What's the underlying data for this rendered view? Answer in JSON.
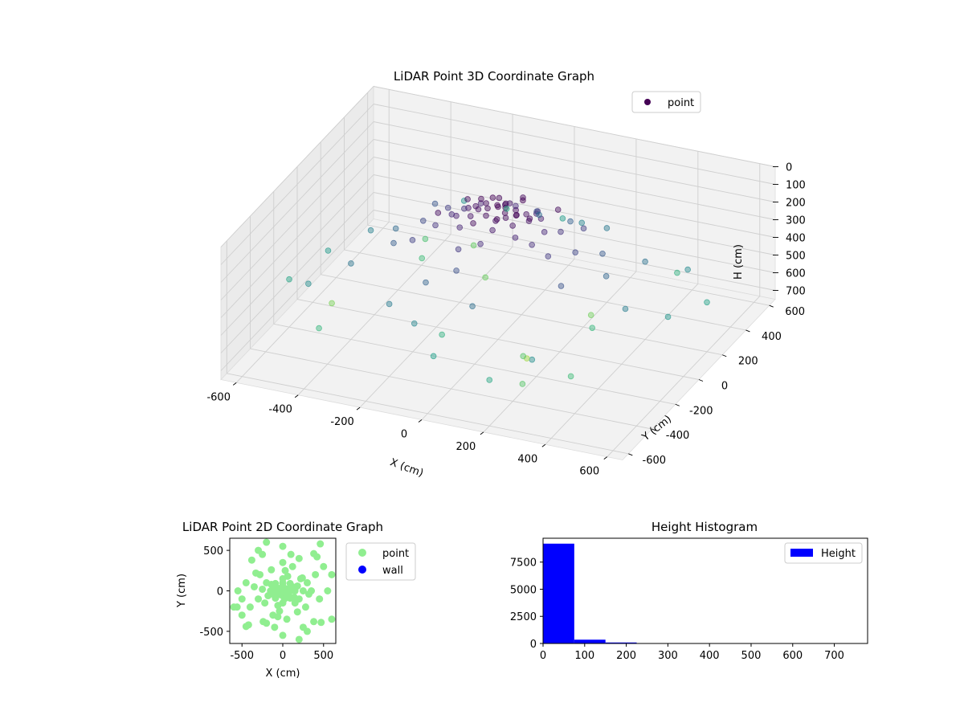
{
  "chart_data": [
    {
      "type": "scatter",
      "title": "LiDAR Point 3D Coordinate Graph",
      "xlabel": "X (cm)",
      "ylabel": "Y (cm)",
      "zlabel": "H (cm)",
      "xlim": [
        -650,
        650
      ],
      "ylim": [
        -650,
        650
      ],
      "zlim": [
        0,
        750
      ],
      "z_inverted": true,
      "x_ticks": [
        -600,
        -400,
        -200,
        0,
        200,
        400,
        600
      ],
      "y_ticks": [
        -600,
        -400,
        -200,
        0,
        200,
        400,
        600
      ],
      "z_ticks": [
        0,
        100,
        200,
        300,
        400,
        500,
        600,
        700
      ],
      "legend": [
        {
          "label": "point",
          "color": "#440154"
        }
      ],
      "legend_position": "upper-right",
      "colormap": "viridis (by height)",
      "grid": true,
      "series": [
        {
          "name": "point",
          "points": [
            [
              0,
              0,
              0
            ],
            [
              20,
              10,
              5
            ],
            [
              -10,
              20,
              8
            ],
            [
              30,
              -20,
              10
            ],
            [
              -30,
              -10,
              12
            ],
            [
              10,
              40,
              6
            ],
            [
              50,
              20,
              15
            ],
            [
              -50,
              30,
              18
            ],
            [
              40,
              -40,
              20
            ],
            [
              -20,
              -50,
              22
            ],
            [
              60,
              0,
              25
            ],
            [
              -60,
              -10,
              28
            ],
            [
              0,
              60,
              30
            ],
            [
              15,
              -60,
              32
            ],
            [
              80,
              30,
              35
            ],
            [
              -80,
              20,
              38
            ],
            [
              70,
              -60,
              40
            ],
            [
              -70,
              -50,
              42
            ],
            [
              100,
              0,
              45
            ],
            [
              -100,
              10,
              48
            ],
            [
              0,
              100,
              50
            ],
            [
              20,
              -100,
              55
            ],
            [
              120,
              50,
              60
            ],
            [
              -120,
              -40,
              65
            ],
            [
              90,
              90,
              70
            ],
            [
              -90,
              90,
              75
            ],
            [
              90,
              -90,
              80
            ],
            [
              -90,
              -90,
              85
            ],
            [
              150,
              0,
              90
            ],
            [
              -150,
              0,
              95
            ],
            [
              0,
              150,
              100
            ],
            [
              0,
              -150,
              105
            ],
            [
              140,
              -80,
              110
            ],
            [
              -140,
              80,
              115
            ],
            [
              180,
              60,
              120
            ],
            [
              -180,
              -60,
              125
            ],
            [
              60,
              180,
              130
            ],
            [
              -60,
              -180,
              135
            ],
            [
              200,
              -100,
              140
            ],
            [
              -200,
              100,
              145
            ],
            [
              220,
              150,
              150
            ],
            [
              -220,
              -150,
              160
            ],
            [
              250,
              0,
              170
            ],
            [
              -250,
              20,
              180
            ],
            [
              30,
              250,
              190
            ],
            [
              -40,
              -250,
              200
            ],
            [
              280,
              -200,
              210
            ],
            [
              -280,
              200,
              220
            ],
            [
              300,
              100,
              230
            ],
            [
              -300,
              -100,
              240
            ],
            [
              120,
              300,
              250
            ],
            [
              -120,
              -300,
              260
            ],
            [
              350,
              0,
              270
            ],
            [
              -350,
              50,
              280
            ],
            [
              0,
              350,
              290
            ],
            [
              50,
              -350,
              300
            ],
            [
              400,
              200,
              310
            ],
            [
              -400,
              -200,
              320
            ],
            [
              200,
              400,
              330
            ],
            [
              -200,
              -400,
              340
            ],
            [
              450,
              -100,
              350
            ],
            [
              -450,
              100,
              360
            ],
            [
              100,
              450,
              370
            ],
            [
              -100,
              -450,
              380
            ],
            [
              500,
              300,
              390
            ],
            [
              -500,
              -300,
              400
            ],
            [
              300,
              -500,
              410
            ],
            [
              -300,
              500,
              420
            ],
            [
              550,
              0,
              430
            ],
            [
              -550,
              0,
              440
            ],
            [
              0,
              550,
              450
            ],
            [
              0,
              -550,
              460
            ],
            [
              600,
              200,
              470
            ],
            [
              -600,
              -200,
              480
            ],
            [
              200,
              -600,
              490
            ],
            [
              -200,
              600,
              500
            ],
            [
              420,
              420,
              520
            ],
            [
              -420,
              -420,
              540
            ],
            [
              380,
              -380,
              560
            ],
            [
              -380,
              380,
              580
            ],
            [
              250,
              -450,
              600
            ],
            [
              -250,
              450,
              620
            ],
            [
              -500,
              -100,
              650
            ],
            [
              150,
              -150,
              700
            ],
            [
              50,
              80,
              2
            ],
            [
              -40,
              60,
              4
            ],
            [
              70,
              -30,
              3
            ],
            [
              -70,
              40,
              7
            ],
            [
              25,
              -75,
              9
            ],
            [
              -25,
              75,
              11
            ],
            [
              110,
              -20,
              14
            ],
            [
              -110,
              30,
              16
            ],
            [
              35,
              120,
              19
            ],
            [
              -35,
              -120,
              21
            ],
            [
              160,
              90,
              23
            ],
            [
              -160,
              -90,
              27
            ],
            [
              -330,
              220,
              560
            ],
            [
              180,
              -260,
              600
            ],
            [
              -140,
              260,
              630
            ],
            [
              240,
              160,
              640
            ],
            [
              -60,
              -320,
              520
            ],
            [
              320,
              -40,
              545
            ]
          ]
        }
      ]
    },
    {
      "type": "scatter",
      "title": "LiDAR Point 2D Coordinate Graph",
      "xlabel": "X (cm)",
      "ylabel": "Y (cm)",
      "xlim": [
        -650,
        650
      ],
      "ylim": [
        -650,
        650
      ],
      "x_ticks": [
        -500,
        0,
        500
      ],
      "y_ticks": [
        -500,
        0,
        500
      ],
      "legend": [
        {
          "label": "point",
          "color": "#90ee90"
        },
        {
          "label": "wall",
          "color": "#0000ff"
        }
      ],
      "legend_position": "outside-right",
      "grid": false,
      "series": [
        {
          "name": "point",
          "color": "#90ee90",
          "points": [
            [
              0,
              0
            ],
            [
              20,
              10
            ],
            [
              -10,
              20
            ],
            [
              30,
              -20
            ],
            [
              -30,
              -10
            ],
            [
              10,
              40
            ],
            [
              50,
              20
            ],
            [
              -50,
              30
            ],
            [
              40,
              -40
            ],
            [
              -20,
              -50
            ],
            [
              60,
              0
            ],
            [
              -60,
              -10
            ],
            [
              0,
              60
            ],
            [
              15,
              -60
            ],
            [
              80,
              30
            ],
            [
              -80,
              20
            ],
            [
              70,
              -60
            ],
            [
              -70,
              -50
            ],
            [
              100,
              0
            ],
            [
              -100,
              10
            ],
            [
              0,
              100
            ],
            [
              20,
              -100
            ],
            [
              120,
              50
            ],
            [
              -120,
              -40
            ],
            [
              90,
              90
            ],
            [
              -90,
              90
            ],
            [
              90,
              -90
            ],
            [
              -90,
              -90
            ],
            [
              150,
              0
            ],
            [
              -150,
              0
            ],
            [
              0,
              150
            ],
            [
              0,
              -150
            ],
            [
              140,
              -80
            ],
            [
              -140,
              80
            ],
            [
              180,
              60
            ],
            [
              -180,
              -60
            ],
            [
              60,
              180
            ],
            [
              -60,
              -180
            ],
            [
              200,
              -100
            ],
            [
              -200,
              100
            ],
            [
              220,
              150
            ],
            [
              -220,
              -150
            ],
            [
              250,
              0
            ],
            [
              -250,
              20
            ],
            [
              30,
              250
            ],
            [
              -40,
              -250
            ],
            [
              280,
              -200
            ],
            [
              -280,
              200
            ],
            [
              300,
              100
            ],
            [
              -300,
              -100
            ],
            [
              120,
              300
            ],
            [
              -120,
              -300
            ],
            [
              350,
              0
            ],
            [
              -350,
              50
            ],
            [
              0,
              350
            ],
            [
              50,
              -350
            ],
            [
              400,
              200
            ],
            [
              -400,
              -200
            ],
            [
              200,
              400
            ],
            [
              -200,
              -400
            ],
            [
              450,
              -100
            ],
            [
              -450,
              100
            ],
            [
              100,
              450
            ],
            [
              -100,
              -450
            ],
            [
              500,
              300
            ],
            [
              -500,
              -300
            ],
            [
              300,
              -500
            ],
            [
              -300,
              500
            ],
            [
              550,
              0
            ],
            [
              -550,
              0
            ],
            [
              0,
              550
            ],
            [
              0,
              -550
            ],
            [
              600,
              200
            ],
            [
              -600,
              -200
            ],
            [
              200,
              -600
            ],
            [
              -200,
              600
            ],
            [
              420,
              420
            ],
            [
              -420,
              -420
            ],
            [
              380,
              -380
            ],
            [
              -380,
              380
            ],
            [
              250,
              -450
            ],
            [
              -250,
              450
            ],
            [
              -500,
              -100
            ],
            [
              150,
              -150
            ],
            [
              -330,
              220
            ],
            [
              180,
              -260
            ],
            [
              -140,
              260
            ],
            [
              240,
              160
            ],
            [
              -60,
              -320
            ],
            [
              320,
              -40
            ],
            [
              460,
              580
            ],
            [
              -450,
              -440
            ],
            [
              470,
              -390
            ],
            [
              -560,
              -200
            ],
            [
              600,
              -350
            ],
            [
              640,
              80
            ],
            [
              -240,
              -380
            ],
            [
              380,
              460
            ]
          ]
        },
        {
          "name": "wall",
          "color": "#0000ff",
          "points": []
        }
      ]
    },
    {
      "type": "bar",
      "title": "Height Histogram",
      "xlabel": "",
      "ylabel": "",
      "xlim": [
        0,
        780
      ],
      "ylim": [
        0,
        9700
      ],
      "x_ticks": [
        0,
        100,
        200,
        300,
        400,
        500,
        600,
        700
      ],
      "y_ticks": [
        0,
        2500,
        5000,
        7500
      ],
      "legend": [
        {
          "label": "Height",
          "color": "#0000ff"
        }
      ],
      "legend_position": "upper-right",
      "series": [
        {
          "name": "Height",
          "color": "#0000ff",
          "bins": [
            [
              0,
              75
            ],
            [
              75,
              150
            ],
            [
              150,
              225
            ],
            [
              225,
              300
            ],
            [
              300,
              375
            ],
            [
              375,
              450
            ],
            [
              450,
              525
            ],
            [
              525,
              600
            ],
            [
              600,
              675
            ],
            [
              675,
              750
            ]
          ],
          "values": [
            9200,
            350,
            90,
            30,
            15,
            10,
            8,
            5,
            4,
            2
          ]
        }
      ]
    }
  ]
}
